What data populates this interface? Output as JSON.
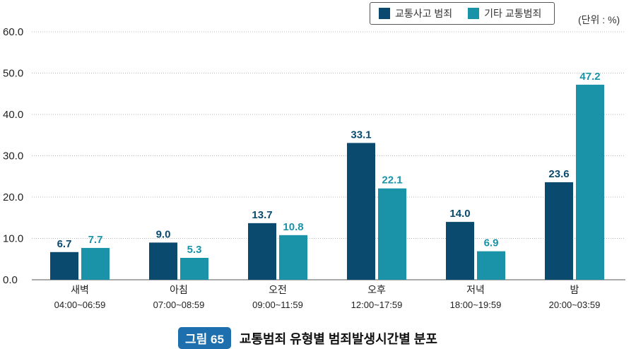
{
  "chart_data": {
    "type": "bar",
    "categories": [
      "새벽",
      "아침",
      "오전",
      "오후",
      "저녁",
      "밤"
    ],
    "category_sublabels": [
      "04:00~06:59",
      "07:00~08:59",
      "09:00~11:59",
      "12:00~17:59",
      "18:00~19:59",
      "20:00~03:59"
    ],
    "series": [
      {
        "name": "교통사고 범죄",
        "values": [
          6.7,
          9.0,
          13.7,
          33.1,
          14.0,
          23.6
        ],
        "color": "#0b4a6f"
      },
      {
        "name": "기타 교통범죄",
        "values": [
          7.7,
          5.3,
          10.8,
          22.1,
          6.9,
          47.2
        ],
        "color": "#1a93a8"
      }
    ],
    "yticks": [
      "0.0",
      "10.0",
      "20.0",
      "30.0",
      "40.0",
      "50.0",
      "60.0"
    ],
    "ylim": [
      0,
      60
    ],
    "unit": "(단위 : %)",
    "grid": true,
    "legend": "top-right"
  },
  "caption": {
    "badge": "그림 65",
    "title": "교통범죄 유형별 범죄발생시간별 분포"
  }
}
